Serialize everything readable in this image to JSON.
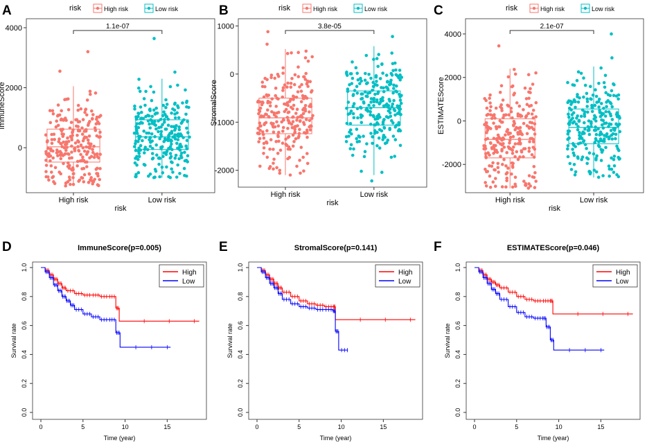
{
  "colors": {
    "high": "#F8766D",
    "low": "#00BFC4",
    "km_high": "#FF0000",
    "km_low": "#0000FF"
  },
  "chart_data": [
    {
      "type": "box",
      "panel": "A",
      "legend_title": "risk",
      "legend": [
        "High risk",
        "Low risk"
      ],
      "categories": [
        "High risk",
        "Low risk"
      ],
      "xlabel": "risk",
      "ylabel": "ImmuneScore",
      "pvalue": "1.1e-07",
      "yticks": [
        0,
        2000,
        4000
      ],
      "ylim": [
        -1500,
        4300
      ],
      "box": [
        {
          "min": -1280,
          "q1": -480,
          "median": 30,
          "q3": 620,
          "max": 2050
        },
        {
          "min": -1000,
          "q1": -60,
          "median": 360,
          "q3": 930,
          "max": 2300
        }
      ],
      "outliers": [
        [
          3200,
          2550
        ],
        [
          3640,
          2520
        ]
      ]
    },
    {
      "type": "box",
      "panel": "B",
      "legend_title": "risk",
      "legend": [
        "High risk",
        "Low risk"
      ],
      "categories": [
        "High risk",
        "Low risk"
      ],
      "xlabel": "risk",
      "ylabel": "StromalScore",
      "pvalue": "3.8e-05",
      "yticks": [
        -2000,
        -1000,
        0,
        1000
      ],
      "ylim": [
        -2350,
        1150
      ],
      "box": [
        {
          "min": -2100,
          "q1": -1240,
          "median": -910,
          "q3": -500,
          "max": 520
        },
        {
          "min": -2100,
          "q1": -1060,
          "median": -700,
          "q3": -350,
          "max": 580
        }
      ],
      "outliers": [
        [
          880,
          620
        ],
        [
          -2220,
          780
        ]
      ]
    },
    {
      "type": "box",
      "panel": "C",
      "legend_title": "risk",
      "legend": [
        "High risk",
        "Low risk"
      ],
      "categories": [
        "High risk",
        "Low risk"
      ],
      "xlabel": "risk",
      "ylabel": "ESTIMATEScore",
      "pvalue": "2.1e-07",
      "yticks": [
        -2000,
        0,
        2000,
        4000
      ],
      "ylim": [
        -3300,
        4700
      ],
      "box": [
        {
          "min": -3100,
          "q1": -1700,
          "median": -850,
          "q3": 100,
          "max": 2400
        },
        {
          "min": -2600,
          "q1": -1050,
          "median": -300,
          "q3": 550,
          "max": 2500
        }
      ],
      "outliers": [
        [
          3450
        ],
        [
          4000,
          2900
        ]
      ]
    },
    {
      "type": "line",
      "panel": "D",
      "title": "ImmuneScore(p=0.005)",
      "xlabel": "Time (year)",
      "ylabel": "Survival rate",
      "legend": [
        "High",
        "Low"
      ],
      "xticks": [
        0,
        5,
        10,
        15
      ],
      "yticks": [
        "0.0",
        "0.2",
        "0.4",
        "0.6",
        "0.8",
        "1.0"
      ],
      "xlim": [
        0,
        19
      ],
      "ylim": [
        0,
        1
      ],
      "series": [
        {
          "name": "High",
          "x": [
            0,
            0.5,
            1,
            1.5,
            2,
            2.5,
            3,
            4,
            5,
            6,
            7,
            8,
            8.9,
            9.3,
            18.8
          ],
          "y": [
            1,
            0.98,
            0.95,
            0.92,
            0.89,
            0.86,
            0.84,
            0.82,
            0.81,
            0.81,
            0.8,
            0.8,
            0.72,
            0.63,
            0.63
          ]
        },
        {
          "name": "Low",
          "x": [
            0,
            0.5,
            1,
            1.5,
            2,
            2.5,
            3,
            3.5,
            4,
            5,
            6,
            7,
            8,
            8.9,
            9.4,
            15.4
          ],
          "y": [
            1,
            0.97,
            0.93,
            0.88,
            0.84,
            0.8,
            0.77,
            0.74,
            0.71,
            0.68,
            0.66,
            0.64,
            0.64,
            0.55,
            0.45,
            0.45
          ]
        }
      ]
    },
    {
      "type": "line",
      "panel": "E",
      "title": "StromalScore(p=0.141)",
      "xlabel": "Time (year)",
      "ylabel": "Survival rate",
      "legend": [
        "High",
        "Low"
      ],
      "xticks": [
        0,
        5,
        10,
        15
      ],
      "yticks": [
        "0.0",
        "0.2",
        "0.4",
        "0.6",
        "0.8",
        "1.0"
      ],
      "xlim": [
        0,
        19
      ],
      "ylim": [
        0,
        1
      ],
      "series": [
        {
          "name": "High",
          "x": [
            0,
            0.5,
            1,
            1.5,
            2,
            2.5,
            3,
            4,
            5,
            6,
            7,
            8,
            9,
            9.3,
            18.8
          ],
          "y": [
            1,
            0.98,
            0.95,
            0.92,
            0.89,
            0.86,
            0.83,
            0.8,
            0.77,
            0.75,
            0.74,
            0.73,
            0.73,
            0.64,
            0.64
          ]
        },
        {
          "name": "Low",
          "x": [
            0,
            0.5,
            1,
            1.5,
            2,
            2.5,
            3,
            4,
            5,
            6,
            7,
            8,
            9,
            9.3,
            9.7,
            10.8
          ],
          "y": [
            1,
            0.97,
            0.93,
            0.89,
            0.86,
            0.82,
            0.78,
            0.75,
            0.73,
            0.72,
            0.71,
            0.71,
            0.7,
            0.56,
            0.43,
            0.43
          ]
        }
      ]
    },
    {
      "type": "line",
      "panel": "F",
      "title": "ESTIMATEScore(p=0.046)",
      "xlabel": "Time (year)",
      "ylabel": "Survival rate",
      "legend": [
        "High",
        "Low"
      ],
      "xticks": [
        0,
        5,
        10,
        15
      ],
      "yticks": [
        "0.0",
        "0.2",
        "0.4",
        "0.6",
        "0.8",
        "1.0"
      ],
      "xlim": [
        0,
        19
      ],
      "ylim": [
        0,
        1
      ],
      "series": [
        {
          "name": "High",
          "x": [
            0,
            0.5,
            1,
            1.5,
            2,
            2.5,
            3,
            4,
            5,
            6,
            7,
            8,
            8.9,
            9.3,
            18.8
          ],
          "y": [
            1,
            0.98,
            0.95,
            0.92,
            0.9,
            0.88,
            0.86,
            0.83,
            0.8,
            0.78,
            0.77,
            0.77,
            0.77,
            0.68,
            0.68
          ]
        },
        {
          "name": "Low",
          "x": [
            0,
            0.5,
            1,
            1.5,
            2,
            2.5,
            3,
            4,
            5,
            6,
            7,
            8,
            8.5,
            9,
            9.4,
            15.4
          ],
          "y": [
            1,
            0.97,
            0.93,
            0.89,
            0.85,
            0.82,
            0.78,
            0.73,
            0.69,
            0.66,
            0.65,
            0.65,
            0.59,
            0.5,
            0.43,
            0.43
          ]
        }
      ]
    }
  ]
}
